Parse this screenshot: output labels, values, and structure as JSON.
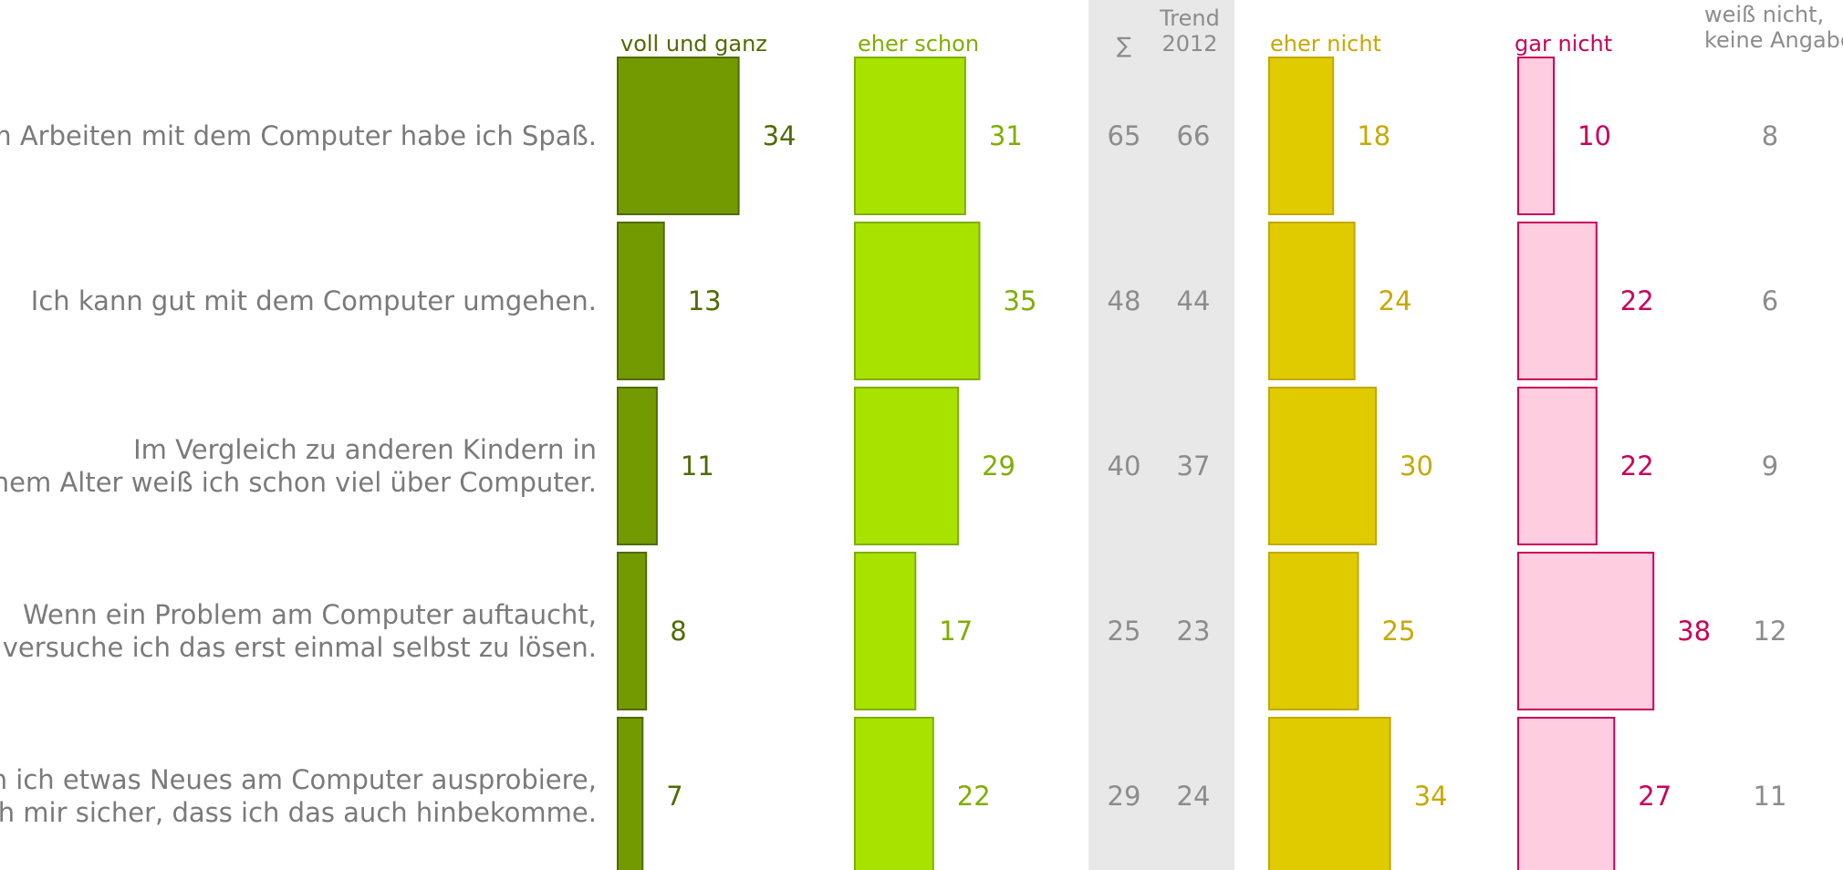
{
  "chart_data": {
    "type": "bar",
    "categories": [
      [
        "Beim Arbeiten mit dem Computer habe ich Spaß."
      ],
      [
        "Ich kann gut mit dem Computer umgehen."
      ],
      [
        "Im Vergleich zu anderen Kindern in",
        "meinem Alter weiß ich schon viel über Computer."
      ],
      [
        "Wenn ein Problem am Computer auftaucht,",
        "dann versuche ich das erst einmal selbst zu lösen."
      ],
      [
        "Wenn ich etwas Neues am Computer ausprobiere,",
        "bin ich mir sicher, dass ich das auch hinbekomme."
      ]
    ],
    "series": [
      {
        "name": "voll und ganz",
        "values": [
          34,
          13,
          11,
          8,
          7
        ],
        "fill": "#739a00",
        "stroke": "#4f6b00",
        "label_color": "#4f6b00"
      },
      {
        "name": "eher schon",
        "values": [
          31,
          35,
          29,
          17,
          22
        ],
        "fill": "#a8e200",
        "stroke": "#7fae00",
        "label_color": "#7fae00"
      },
      {
        "name": "eher nicht",
        "values": [
          18,
          24,
          30,
          25,
          34
        ],
        "fill": "#e0cb00",
        "stroke": "#c2a800",
        "label_color": "#c8a800"
      },
      {
        "name": "gar nicht",
        "values": [
          10,
          22,
          22,
          38,
          27
        ],
        "fill": "#ffcce0",
        "stroke": "#c8005a",
        "label_color": "#c8005a"
      }
    ],
    "sum": {
      "header": "∑",
      "values": [
        65,
        48,
        40,
        25,
        29
      ]
    },
    "trend": {
      "header": [
        "Trend",
        "2012"
      ],
      "values": [
        66,
        44,
        37,
        23,
        24
      ]
    },
    "no_answer": {
      "header": [
        "weiß nicht,",
        "keine Angabe"
      ],
      "values": [
        8,
        6,
        9,
        12,
        11
      ]
    },
    "colors": {
      "sum_band": "#e8e8e8",
      "statement_text": "#7a7a7a",
      "neutral_text": "#8c8c8c"
    }
  }
}
